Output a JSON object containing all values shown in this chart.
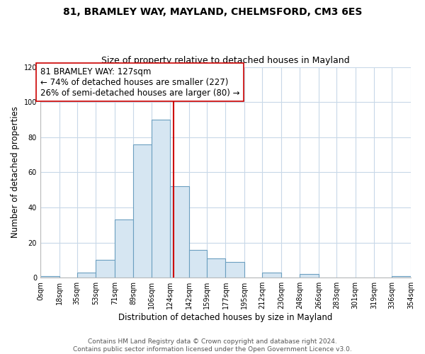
{
  "title": "81, BRAMLEY WAY, MAYLAND, CHELMSFORD, CM3 6ES",
  "subtitle": "Size of property relative to detached houses in Mayland",
  "xlabel": "Distribution of detached houses by size in Mayland",
  "ylabel": "Number of detached properties",
  "bar_color": "#d6e6f2",
  "bar_edge_color": "#6b9fc0",
  "background_color": "#ffffff",
  "grid_color": "#c8d8e8",
  "vline_x": 127,
  "vline_color": "#cc0000",
  "annotation_line1": "81 BRAMLEY WAY: 127sqm",
  "annotation_line2": "← 74% of detached houses are smaller (227)",
  "annotation_line3": "26% of semi-detached houses are larger (80) →",
  "annotation_box_color": "#ffffff",
  "annotation_box_edge": "#cc0000",
  "bin_edges": [
    0,
    18,
    35,
    53,
    71,
    89,
    106,
    124,
    142,
    159,
    177,
    195,
    212,
    230,
    248,
    266,
    283,
    301,
    319,
    336,
    354
  ],
  "bin_counts": [
    1,
    0,
    3,
    10,
    33,
    76,
    90,
    52,
    16,
    11,
    9,
    0,
    3,
    0,
    2,
    0,
    0,
    0,
    0,
    1
  ],
  "tick_labels": [
    "0sqm",
    "18sqm",
    "35sqm",
    "53sqm",
    "71sqm",
    "89sqm",
    "106sqm",
    "124sqm",
    "142sqm",
    "159sqm",
    "177sqm",
    "195sqm",
    "212sqm",
    "230sqm",
    "248sqm",
    "266sqm",
    "283sqm",
    "301sqm",
    "319sqm",
    "336sqm",
    "354sqm"
  ],
  "ylim": [
    0,
    120
  ],
  "yticks": [
    0,
    20,
    40,
    60,
    80,
    100,
    120
  ],
  "footer_text": "Contains HM Land Registry data © Crown copyright and database right 2024.\nContains public sector information licensed under the Open Government Licence v3.0.",
  "title_fontsize": 10,
  "subtitle_fontsize": 9,
  "annotation_fontsize": 8.5,
  "tick_fontsize": 7,
  "ylabel_fontsize": 8.5,
  "xlabel_fontsize": 8.5,
  "footer_fontsize": 6.5
}
